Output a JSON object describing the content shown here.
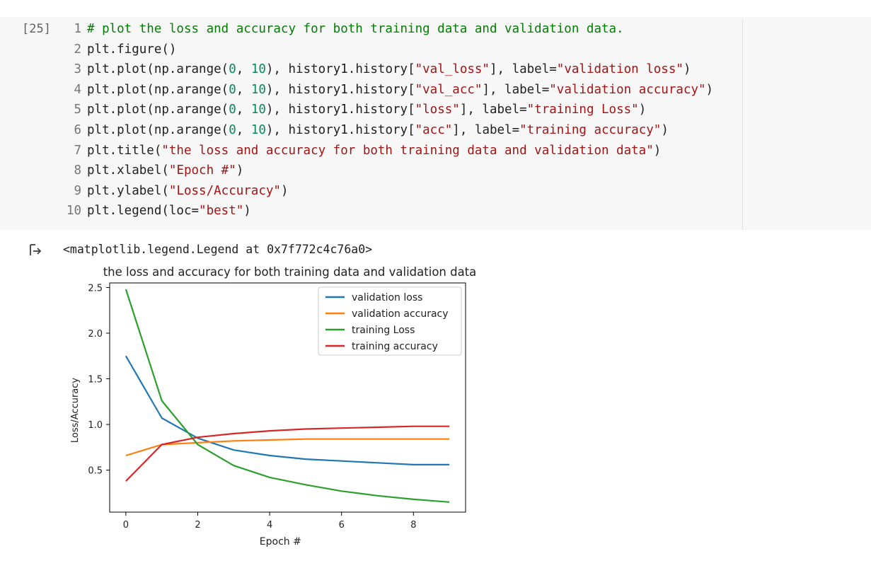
{
  "cell": {
    "execution_count": "[25]",
    "code_lines": [
      {
        "n": "1",
        "tokens": [
          {
            "t": "# plot the loss and accuracy for both training data and validation data.",
            "k": "comment"
          }
        ]
      },
      {
        "n": "2",
        "tokens": [
          {
            "t": "plt.figure()",
            "k": "plain"
          }
        ]
      },
      {
        "n": "3",
        "tokens": [
          {
            "t": "plt.plot(np.arange(",
            "k": "plain"
          },
          {
            "t": "0",
            "k": "num"
          },
          {
            "t": ", ",
            "k": "plain"
          },
          {
            "t": "10",
            "k": "num"
          },
          {
            "t": "), history1.history[",
            "k": "plain"
          },
          {
            "t": "\"val_loss\"",
            "k": "str"
          },
          {
            "t": "], label=",
            "k": "plain"
          },
          {
            "t": "\"validation loss\"",
            "k": "str"
          },
          {
            "t": ")",
            "k": "plain"
          }
        ]
      },
      {
        "n": "4",
        "tokens": [
          {
            "t": "plt.plot(np.arange(",
            "k": "plain"
          },
          {
            "t": "0",
            "k": "num"
          },
          {
            "t": ", ",
            "k": "plain"
          },
          {
            "t": "10",
            "k": "num"
          },
          {
            "t": "), history1.history[",
            "k": "plain"
          },
          {
            "t": "\"val_acc\"",
            "k": "str"
          },
          {
            "t": "], label=",
            "k": "plain"
          },
          {
            "t": "\"validation accuracy\"",
            "k": "str"
          },
          {
            "t": ")",
            "k": "plain"
          }
        ]
      },
      {
        "n": "5",
        "tokens": [
          {
            "t": "plt.plot(np.arange(",
            "k": "plain"
          },
          {
            "t": "0",
            "k": "num"
          },
          {
            "t": ", ",
            "k": "plain"
          },
          {
            "t": "10",
            "k": "num"
          },
          {
            "t": "), history1.history[",
            "k": "plain"
          },
          {
            "t": "\"loss\"",
            "k": "str"
          },
          {
            "t": "], label=",
            "k": "plain"
          },
          {
            "t": "\"training Loss\"",
            "k": "str"
          },
          {
            "t": ")",
            "k": "plain"
          }
        ]
      },
      {
        "n": "6",
        "tokens": [
          {
            "t": "plt.plot(np.arange(",
            "k": "plain"
          },
          {
            "t": "0",
            "k": "num"
          },
          {
            "t": ", ",
            "k": "plain"
          },
          {
            "t": "10",
            "k": "num"
          },
          {
            "t": "), history1.history[",
            "k": "plain"
          },
          {
            "t": "\"acc\"",
            "k": "str"
          },
          {
            "t": "], label=",
            "k": "plain"
          },
          {
            "t": "\"training accuracy\"",
            "k": "str"
          },
          {
            "t": ")",
            "k": "plain"
          }
        ]
      },
      {
        "n": "7",
        "tokens": [
          {
            "t": "plt.title(",
            "k": "plain"
          },
          {
            "t": "\"the loss and accuracy for both training data and validation data\"",
            "k": "str"
          },
          {
            "t": ")",
            "k": "plain"
          }
        ]
      },
      {
        "n": "8",
        "tokens": [
          {
            "t": "plt.xlabel(",
            "k": "plain"
          },
          {
            "t": "\"Epoch #\"",
            "k": "str"
          },
          {
            "t": ")",
            "k": "plain"
          }
        ]
      },
      {
        "n": "9",
        "tokens": [
          {
            "t": "plt.ylabel(",
            "k": "plain"
          },
          {
            "t": "\"Loss/Accuracy\"",
            "k": "str"
          },
          {
            "t": ")",
            "k": "plain"
          }
        ]
      },
      {
        "n": "10",
        "tokens": [
          {
            "t": "plt.legend(loc=",
            "k": "plain"
          },
          {
            "t": "\"best\"",
            "k": "str"
          },
          {
            "t": ")",
            "k": "plain"
          }
        ]
      }
    ],
    "colors": {
      "comment": "#008000",
      "num": "#09885a",
      "str": "#a31515",
      "plain": "#212121"
    }
  },
  "output": {
    "icon": "output-arrow-icon",
    "text": "<matplotlib.legend.Legend at 0x7f772c4c76a0>"
  },
  "chart_data": {
    "type": "line",
    "title": "the loss and accuracy for both training data and validation data",
    "xlabel": "Epoch #",
    "ylabel": "Loss/Accuracy",
    "x": [
      0,
      1,
      2,
      3,
      4,
      5,
      6,
      7,
      8,
      9
    ],
    "xticks": [
      0,
      2,
      4,
      6,
      8
    ],
    "yticks": [
      0.5,
      1.0,
      1.5,
      2.0,
      2.5
    ],
    "ytick_labels": [
      "0.5",
      "1.0",
      "1.5",
      "2.0",
      "2.5"
    ],
    "xlim": [
      -0.45,
      9.45
    ],
    "ylim": [
      0.04,
      2.55
    ],
    "grid": false,
    "legend_position": "top-right",
    "series": [
      {
        "name": "validation loss",
        "color": "#1f77b4",
        "values": [
          1.75,
          1.07,
          0.85,
          0.72,
          0.66,
          0.62,
          0.6,
          0.58,
          0.56,
          0.56
        ]
      },
      {
        "name": "validation accuracy",
        "color": "#ff7f0e",
        "values": [
          0.66,
          0.78,
          0.8,
          0.82,
          0.83,
          0.84,
          0.84,
          0.84,
          0.84,
          0.84
        ]
      },
      {
        "name": "training Loss",
        "color": "#2ca02c",
        "values": [
          2.48,
          1.26,
          0.78,
          0.55,
          0.42,
          0.34,
          0.27,
          0.22,
          0.18,
          0.15
        ]
      },
      {
        "name": "training accuracy",
        "color": "#d62728",
        "values": [
          0.38,
          0.78,
          0.86,
          0.9,
          0.93,
          0.95,
          0.96,
          0.97,
          0.98,
          0.98
        ]
      }
    ]
  }
}
